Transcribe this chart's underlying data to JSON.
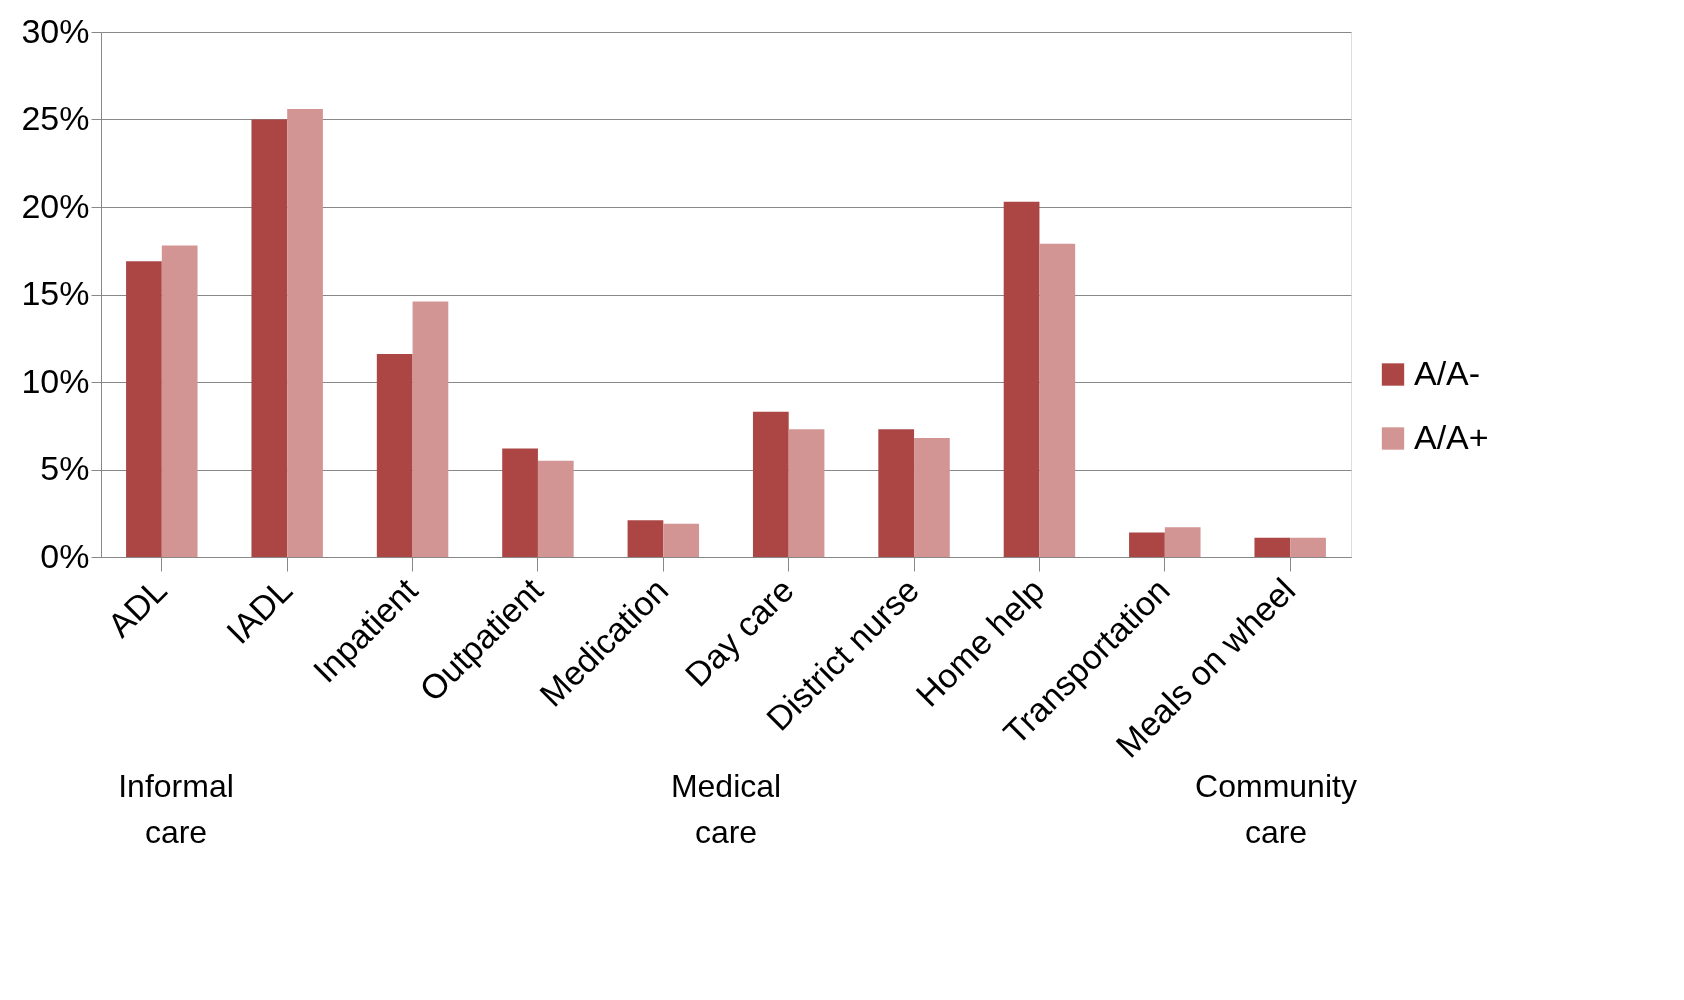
{
  "chart_data": {
    "type": "bar",
    "categories": [
      "ADL",
      "IADL",
      "Inpatient",
      "Outpatient",
      "Medication",
      "Day care",
      "District nurse",
      "Home help",
      "Transportation",
      "Meals on wheel"
    ],
    "series": [
      {
        "name": "A/A-",
        "color": "#ab4644",
        "values": [
          16.9,
          25.0,
          11.6,
          6.2,
          2.1,
          8.3,
          7.3,
          20.3,
          1.4,
          1.1
        ]
      },
      {
        "name": "A/A+",
        "color": "#d39594",
        "values": [
          17.8,
          25.6,
          14.6,
          5.5,
          1.9,
          7.3,
          6.8,
          17.9,
          1.7,
          1.1
        ]
      }
    ],
    "ylim": [
      0,
      30
    ],
    "yticks": [
      {
        "value": 0,
        "label": "0%"
      },
      {
        "value": 5,
        "label": "5%"
      },
      {
        "value": 10,
        "label": "10%"
      },
      {
        "value": 15,
        "label": "15%"
      },
      {
        "value": 20,
        "label": "20%"
      },
      {
        "value": 25,
        "label": "25%"
      },
      {
        "value": 30,
        "label": "30%"
      }
    ],
    "grid": "y",
    "legend": "right",
    "annotations": [
      "Informal care",
      "Medical care",
      "Community care"
    ]
  }
}
